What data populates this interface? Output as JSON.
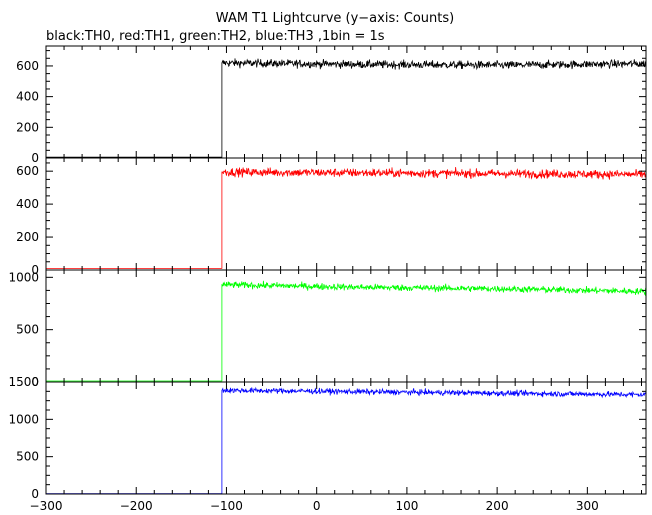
{
  "chart_data": {
    "type": "line",
    "title": "WAM T1 Lightcurve (y−axis: Counts)",
    "subtitle": "black:TH0, red:TH1, green:TH2, blue:TH3 ,1bin = 1s",
    "xlim": [
      -300,
      365
    ],
    "x_ticks": [
      -300,
      -200,
      -100,
      0,
      100,
      200,
      300
    ],
    "x_tick_labels": [
      "−300",
      "−200",
      "−100",
      "0",
      "100",
      "200",
      "300"
    ],
    "grid": false,
    "step_time": -105,
    "panels": [
      {
        "series": "TH0",
        "color": "#000000",
        "ylim": [
          0,
          730
        ],
        "y_ticks": [
          0,
          200,
          400,
          600
        ],
        "y_tick_labels": [
          "0",
          "200",
          "400",
          "600"
        ],
        "pre_level": 5,
        "post_level": [
          620,
          610,
          605,
          615
        ],
        "noise": 25
      },
      {
        "series": "TH1",
        "color": "#ff0000",
        "ylim": [
          0,
          680
        ],
        "y_ticks": [
          0,
          200,
          400,
          600
        ],
        "y_tick_labels": [
          "0",
          "200",
          "400",
          "600"
        ],
        "pre_level": 10,
        "post_level": [
          595,
          590,
          585,
          580
        ],
        "noise": 25
      },
      {
        "series": "TH2",
        "color": "#00ff00",
        "ylim": [
          0,
          1070
        ],
        "y_ticks": [
          0,
          500,
          1000
        ],
        "y_tick_labels": [
          "0",
          "500",
          "1000"
        ],
        "pre_level": 10,
        "post_level": [
          930,
          905,
          890,
          865
        ],
        "noise": 30
      },
      {
        "series": "TH3",
        "color": "#0000ff",
        "ylim": [
          0,
          1500
        ],
        "y_ticks": [
          0,
          500,
          1000,
          1500
        ],
        "y_tick_labels": [
          "0",
          "500",
          "1000",
          "1500"
        ],
        "pre_level": 5,
        "post_level": [
          1390,
          1370,
          1350,
          1330
        ],
        "noise": 35
      }
    ]
  }
}
